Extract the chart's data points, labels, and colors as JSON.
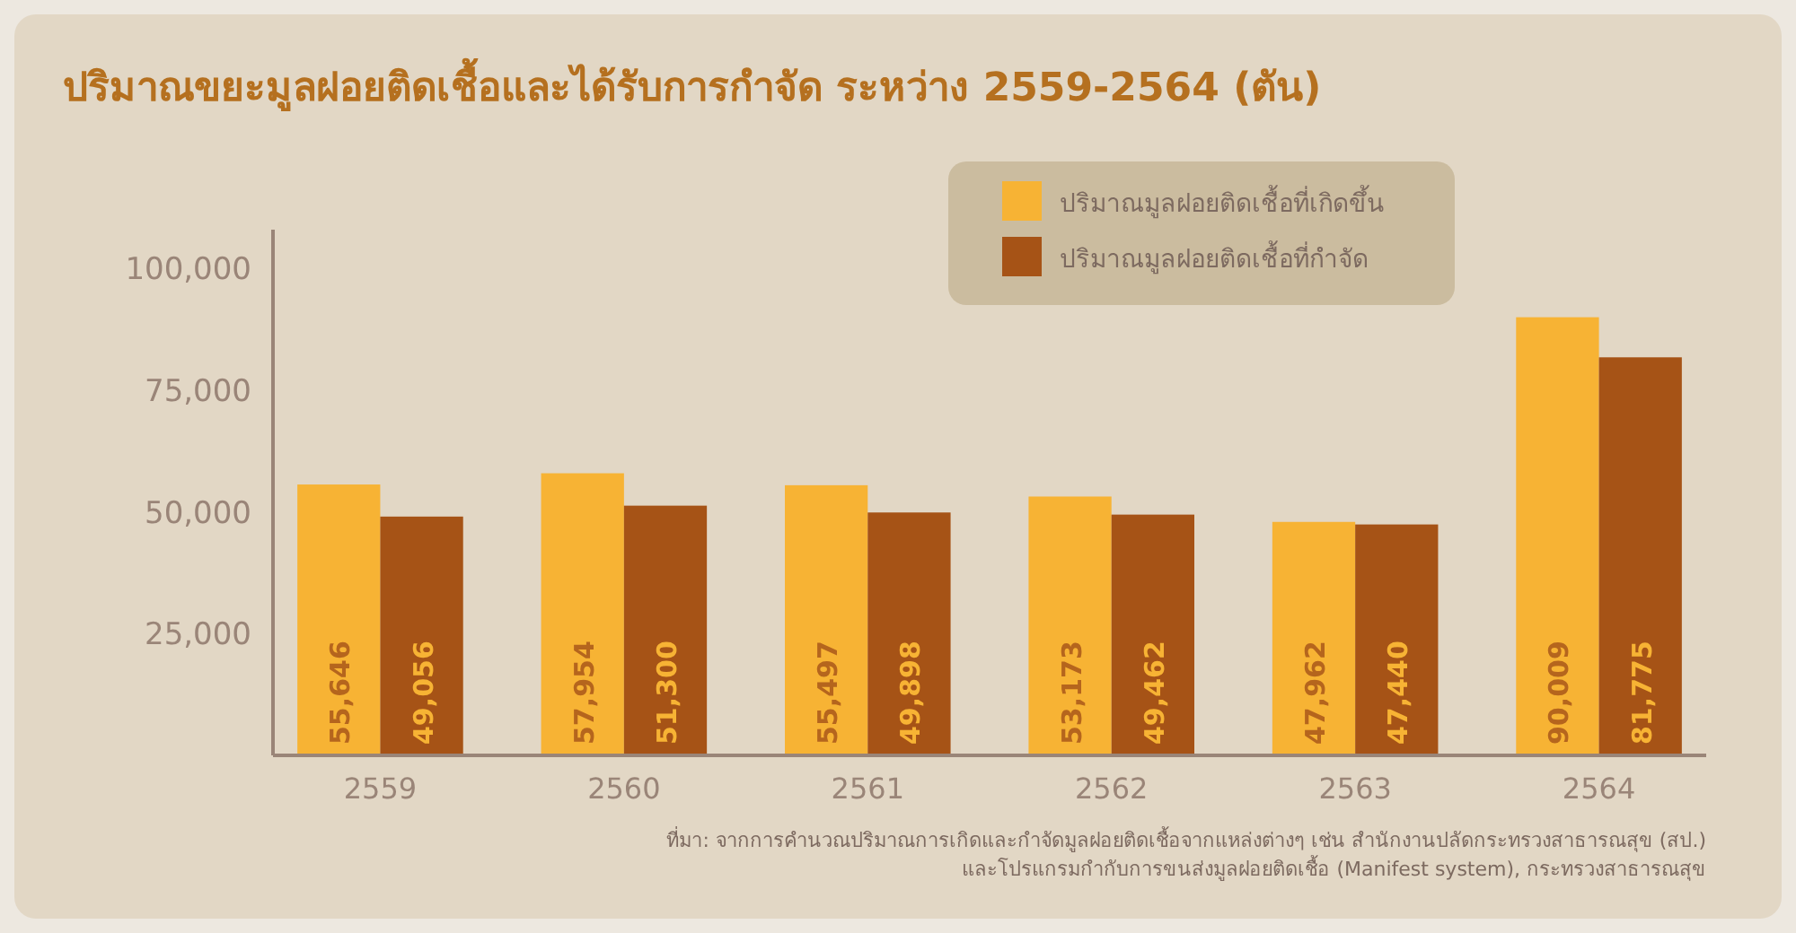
{
  "chart_data": {
    "type": "bar",
    "title": "ปริมาณขยะมูลฝอยติดเชื้อและได้รับการกำจัด ระหว่าง 2559-2564 (ตัน)",
    "categories": [
      "2559",
      "2560",
      "2561",
      "2562",
      "2563",
      "2564"
    ],
    "series": [
      {
        "name": "ปริมาณมูลฝอยติดเชื้อที่เกิดขึ้น",
        "color": "#f7b334",
        "values": [
          55646,
          57954,
          55497,
          53173,
          47962,
          90009
        ],
        "value_labels": [
          "55,646",
          "57,954",
          "55,497",
          "53,173",
          "47,962",
          "90,009"
        ]
      },
      {
        "name": "ปริมาณมูลฝอยติดเชื้อที่กำจัด",
        "color": "#a65316",
        "values": [
          49056,
          51300,
          49898,
          49462,
          47440,
          81775
        ],
        "value_labels": [
          "49,056",
          "51,300",
          "49,898",
          "49,462",
          "47,440",
          "81,775"
        ]
      }
    ],
    "ylim": [
      0,
      108000
    ],
    "yticks": [
      {
        "value": 25000,
        "label": "25,000"
      },
      {
        "value": 50000,
        "label": "50,000"
      },
      {
        "value": 75000,
        "label": "75,000"
      },
      {
        "value": 100000,
        "label": "100,000"
      }
    ],
    "grid": false,
    "legend": "top right",
    "annotations": [
      "ที่มา: จากการคำนวณปริมาณการเกิดและกำจัดมูลฝอยติดเชื้อจากแหล่งต่างๆ เช่น สำนักงานปลัดกระทรวงสาธารณสุข (สป.)",
      "และโปรแกรมกำกับการขนส่งมูลฝอยติดเชื้อ  (Manifest system), กระทรวงสาธารณสุข"
    ]
  }
}
